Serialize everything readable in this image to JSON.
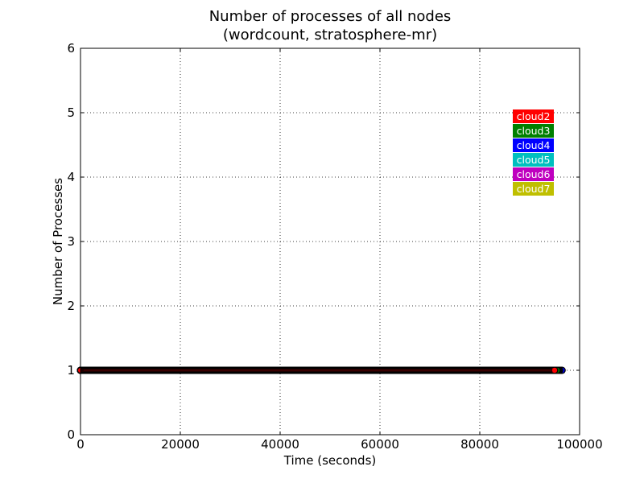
{
  "chart_data": {
    "type": "scatter",
    "title": "Number of processes of all nodes",
    "subtitle": "(wordcount, stratosphere-mr)",
    "xlabel": "Time (seconds)",
    "ylabel": "Number of Processes",
    "xlim": [
      0,
      100000
    ],
    "ylim": [
      0,
      6
    ],
    "xticks": [
      "0",
      "20000",
      "40000",
      "60000",
      "80000",
      "100000"
    ],
    "yticks": [
      "0",
      "1",
      "2",
      "3",
      "4",
      "5",
      "6"
    ],
    "grid": true,
    "legend_position": "upper-right",
    "series": [
      {
        "name": "cloud2",
        "color": "#ff0000",
        "x_range": [
          0,
          95000
        ],
        "y": 1
      },
      {
        "name": "cloud3",
        "color": "#008000",
        "x_range": [
          0,
          95500
        ],
        "y": 1
      },
      {
        "name": "cloud4",
        "color": "#0000ff",
        "x_range": [
          0,
          96500
        ],
        "y": 1
      },
      {
        "name": "cloud5",
        "color": "#00bfbf",
        "x_range": [
          0,
          96000
        ],
        "y": 1
      },
      {
        "name": "cloud6",
        "color": "#bf00bf",
        "x_range": [
          0,
          95800
        ],
        "y": 1
      },
      {
        "name": "cloud7",
        "color": "#bfbf00",
        "x_range": [
          0,
          95600
        ],
        "y": 1
      }
    ]
  }
}
